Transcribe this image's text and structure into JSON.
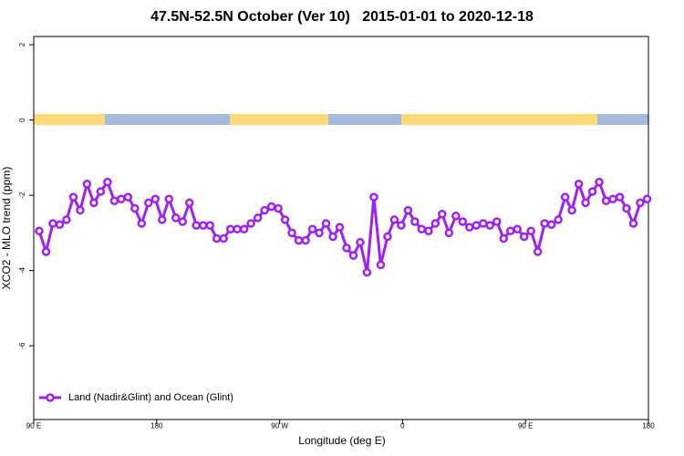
{
  "chart_data": {
    "type": "line",
    "title": "47.5N-52.5N October (Ver 10)   2015-01-01 to 2020-12-18",
    "x_label": "Longitude (deg E)",
    "y_label": "XCO2 - MLO trend (ppm)",
    "xlim": [
      90,
      540
    ],
    "xticks": [
      {
        "value": 90,
        "label": "90 E"
      },
      180,
      {
        "value": 270,
        "label": "90 W"
      },
      {
        "value": 360,
        "label": "0"
      },
      {
        "value": 450,
        "label": "90 E"
      },
      {
        "value": 540,
        "label": "180"
      }
    ],
    "ylim": [
      -7.96,
      2.22
    ],
    "yticks": [
      -6,
      -4,
      -2,
      0,
      2
    ],
    "legend": "bottom-left",
    "x": [
      94,
      99,
      104,
      109,
      114,
      119,
      124,
      129,
      134,
      139,
      144,
      149,
      154,
      159,
      164,
      169,
      174,
      179,
      184,
      189,
      194,
      199,
      204,
      209,
      214,
      219,
      224,
      229,
      234,
      239,
      244,
      249,
      254,
      259,
      264,
      269,
      274,
      279,
      284,
      289,
      294,
      299,
      304,
      309,
      314,
      319,
      324,
      329,
      334,
      339,
      344,
      349,
      354,
      359,
      364,
      369,
      374,
      379,
      384,
      389,
      394,
      399,
      404,
      409,
      414,
      419,
      424,
      429,
      434,
      439,
      444,
      449,
      454,
      459,
      464,
      469,
      474,
      479,
      484,
      489,
      494,
      499,
      504,
      509,
      514,
      519,
      524,
      529,
      534,
      539
    ],
    "series": [
      {
        "name": "Land (Nadir&Glint) and Ocean (Glint)",
        "color": "#a020f0",
        "values": [
          -2.95,
          -3.5,
          -2.75,
          -2.78,
          -2.65,
          -2.05,
          -2.4,
          -1.7,
          -2.2,
          -1.9,
          -1.65,
          -2.15,
          -2.1,
          -2.05,
          -2.35,
          -2.75,
          -2.2,
          -2.1,
          -2.65,
          -2.1,
          -2.6,
          -2.7,
          -2.2,
          -2.8,
          -2.8,
          -2.8,
          -3.15,
          -3.15,
          -2.9,
          -2.9,
          -2.9,
          -2.75,
          -2.6,
          -2.4,
          -2.3,
          -2.35,
          -2.65,
          -3.0,
          -3.2,
          -3.2,
          -2.9,
          -3.0,
          -2.75,
          -3.1,
          -2.85,
          -3.4,
          -3.6,
          -3.25,
          -4.05,
          -2.05,
          -3.85,
          -3.1,
          -2.65,
          -2.8,
          -2.4,
          -2.7,
          -2.9,
          -2.95,
          -2.75,
          -2.5,
          -3.0,
          -2.55,
          -2.7,
          -2.85,
          -2.8,
          -2.75,
          -2.8,
          -2.7,
          -3.15,
          -2.95,
          -2.9,
          -3.1,
          -2.95,
          -3.5,
          -2.75,
          -2.78,
          -2.65,
          -2.05,
          -2.4,
          -1.7,
          -2.2,
          -1.9,
          -1.65,
          -2.15,
          -2.1,
          -2.05,
          -2.35,
          -2.75,
          -2.2,
          -2.1
        ]
      }
    ]
  }
}
